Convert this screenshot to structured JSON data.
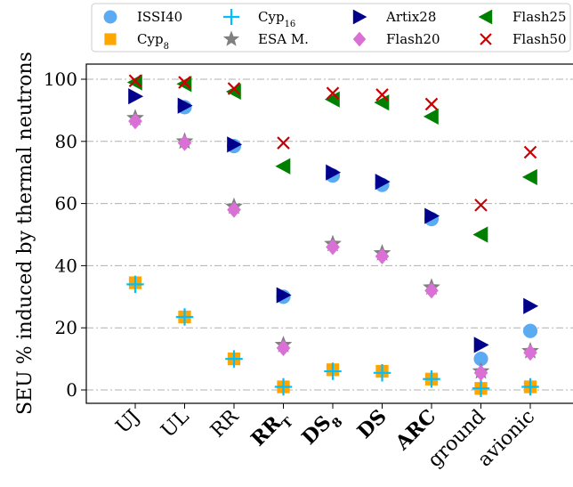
{
  "chart_data": {
    "type": "scatter",
    "ylabel": "SEU % induced by thermal neutrons",
    "xlabel": "",
    "ylim": [
      -5,
      105
    ],
    "yticks": [
      0,
      20,
      40,
      60,
      80,
      100
    ],
    "grid": "horizontal dash-dot",
    "legend_position": "top",
    "categories": [
      {
        "label": "UJ",
        "bold": false
      },
      {
        "label": "UL",
        "bold": false
      },
      {
        "label": "RR",
        "bold": false
      },
      {
        "label": "RR",
        "sub": "T",
        "bold": true
      },
      {
        "label": "DS",
        "sub": "8",
        "bold": true
      },
      {
        "label": "DS",
        "bold": true
      },
      {
        "label": "ARC",
        "bold": true
      },
      {
        "label": "ground",
        "bold": false
      },
      {
        "label": "avionic",
        "bold": false
      }
    ],
    "series": [
      {
        "name": "ISSI40",
        "sub": "",
        "marker": "circle",
        "color": "#5aabf2",
        "values": [
          null,
          91,
          78.5,
          30,
          69,
          66,
          55,
          10,
          19
        ]
      },
      {
        "name": "Cyp",
        "sub": "8",
        "marker": "square",
        "color": "#ffa500",
        "values": [
          34.5,
          23.5,
          10,
          1,
          6.5,
          6,
          3.5,
          0.5,
          1
        ]
      },
      {
        "name": "Cyp",
        "sub": "16",
        "marker": "plus",
        "color": "#00bfff",
        "values": [
          34,
          23.5,
          10,
          1,
          6,
          5.5,
          3.5,
          0.5,
          1
        ]
      },
      {
        "name": "ESA M.",
        "sub": "",
        "marker": "star",
        "color": "#808080",
        "values": [
          87.5,
          80,
          59,
          14.5,
          47,
          44,
          33,
          6,
          12.5
        ]
      },
      {
        "name": "Artix28",
        "sub": "",
        "marker": "triangle-right",
        "color": "#00008b",
        "values": [
          94.5,
          91.5,
          79,
          30.5,
          70,
          67,
          56,
          14.5,
          27
        ]
      },
      {
        "name": "Flash20",
        "sub": "",
        "marker": "diamond",
        "color": "#da70d6",
        "values": [
          86.5,
          79.5,
          58,
          13.5,
          46,
          43,
          32,
          5.5,
          12
        ]
      },
      {
        "name": "Flash25",
        "sub": "",
        "marker": "triangle-left",
        "color": "#008000",
        "values": [
          99,
          98.5,
          96,
          72,
          93.5,
          92.5,
          88,
          50,
          68.5
        ]
      },
      {
        "name": "Flash50",
        "sub": "",
        "marker": "x",
        "color": "#cc0000",
        "values": [
          99.5,
          99,
          97,
          79.5,
          95.5,
          95,
          92,
          59.5,
          76.5
        ]
      }
    ]
  }
}
